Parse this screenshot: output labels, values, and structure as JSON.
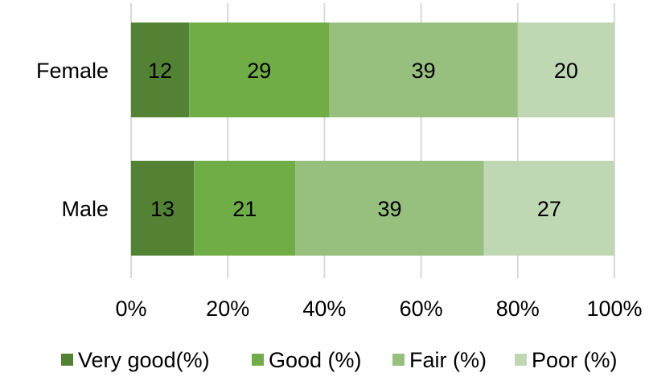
{
  "chart_data": {
    "type": "bar",
    "orientation": "horizontal",
    "stacked": "percent",
    "categories": [
      "Female",
      "Male"
    ],
    "series": [
      {
        "name": "Very good(%)",
        "values": [
          12,
          13
        ],
        "color": "#548235"
      },
      {
        "name": "Good (%)",
        "values": [
          29,
          21
        ],
        "color": "#70ad47"
      },
      {
        "name": "Fair (%)",
        "values": [
          39,
          39
        ],
        "color": "#97bf7d"
      },
      {
        "name": "Poor (%)",
        "values": [
          20,
          27
        ],
        "color": "#c0d7b4"
      }
    ],
    "xaxis": {
      "ticks": [
        "0%",
        "20%",
        "40%",
        "60%",
        "80%",
        "100%"
      ],
      "range": [
        0,
        100
      ]
    },
    "grid": true,
    "legend_position": "bottom",
    "data_labels": true
  }
}
